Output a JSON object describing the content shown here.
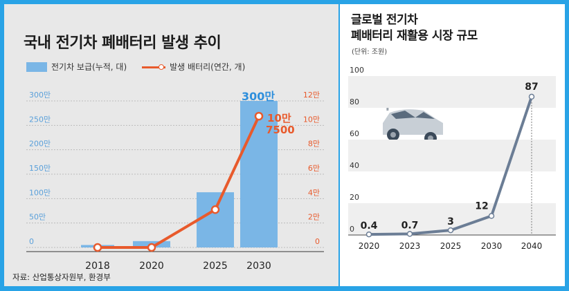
{
  "left": {
    "title": "국내 전기차 폐배터리 발생 추이",
    "legend_bar": "전기차 보급(누적, 대)",
    "legend_line": "발생 배터리(연간, 개)",
    "source": "자료: 산업통상자원부, 환경부"
  },
  "right": {
    "title_line1": "글로벌 전기차",
    "title_line2": "폐배터리 재활용 시장 규모",
    "unit": "(단위: 조원)"
  },
  "colors": {
    "bar": "#7ab6e6",
    "line": "#e85a2c",
    "right_line": "#6b7d95",
    "left_bg": "#e8e8e8"
  },
  "chart_data": [
    {
      "type": "bar+line",
      "title": "국내 전기차 폐배터리 발생 추이",
      "categories": [
        "2018",
        "2020",
        "2025",
        "2030"
      ],
      "series": [
        {
          "name": "전기차 보급(누적, 대)",
          "type": "bar",
          "axis": "left",
          "values": [
            50000,
            130000,
            1130000,
            3000000
          ]
        },
        {
          "name": "발생 배터리(연간, 개)",
          "type": "line",
          "axis": "right",
          "values": [
            0,
            0,
            31000,
            107500
          ]
        }
      ],
      "left_axis": {
        "ylim": [
          0,
          3000000
        ],
        "ticks": [
          0,
          500000,
          1000000,
          1500000,
          2000000,
          2500000,
          3000000
        ],
        "tick_labels": [
          "0",
          "50만",
          "100만",
          "150만",
          "200만",
          "250만",
          "300만"
        ]
      },
      "right_axis": {
        "ylim": [
          0,
          120000
        ],
        "ticks": [
          0,
          20000,
          40000,
          60000,
          80000,
          100000,
          120000
        ],
        "tick_labels": [
          "0",
          "2만",
          "4만",
          "6만",
          "8만",
          "10만",
          "12만"
        ]
      },
      "annotations": [
        {
          "text": "300만",
          "series": "전기차 보급(누적, 대)",
          "category": "2030"
        },
        {
          "text": "10만",
          "series": "발생 배터리(연간, 개)",
          "category": "2030"
        },
        {
          "text": "7500",
          "series": "발생 배터리(연간, 개)",
          "category": "2030"
        }
      ]
    },
    {
      "type": "line",
      "title": "글로벌 전기차 폐배터리 재활용 시장 규모",
      "unit": "(단위: 조원)",
      "categories": [
        "2020",
        "2023",
        "2025",
        "2030",
        "2040"
      ],
      "values": [
        0.4,
        0.7,
        3,
        12,
        87
      ],
      "data_labels": [
        "0.4",
        "0.7",
        "3",
        "12",
        "87"
      ],
      "ylim": [
        0,
        100
      ],
      "ticks": [
        0,
        20,
        40,
        60,
        80,
        100
      ],
      "tick_labels": [
        "0",
        "20",
        "40",
        "60",
        "80",
        "100"
      ],
      "grid": "alternating bands"
    }
  ]
}
